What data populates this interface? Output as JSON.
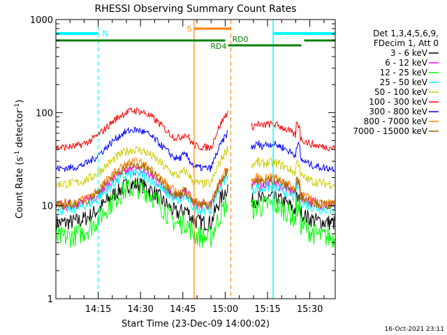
{
  "chart_data": {
    "type": "line",
    "title": "RHESSI Observing Summary Count Rates",
    "xlabel": "Start Time (23-Dec-09 14:00:02)",
    "ylabel_main": "Count Rate (s",
    "ylabel_sup1": "-1",
    "ylabel_mid": " detector",
    "ylabel_sup2": "-1",
    "ylabel_end": ")",
    "y_scale": "log",
    "xlim_min": [
      0,
      99
    ],
    "ylim": [
      1,
      1000
    ],
    "x_ticks": [
      {
        "min": 15,
        "label": "14:15"
      },
      {
        "min": 30,
        "label": "14:30"
      },
      {
        "min": 45,
        "label": "14:45"
      },
      {
        "min": 60,
        "label": "15:00"
      },
      {
        "min": 75,
        "label": "15:15"
      },
      {
        "min": 90,
        "label": "15:30"
      }
    ],
    "y_ticks": [
      {
        "value": 1,
        "label": "1"
      },
      {
        "value": 10,
        "label": "10"
      },
      {
        "value": 100,
        "label": "100"
      },
      {
        "value": 1000,
        "label": "1000"
      }
    ],
    "legend_header": [
      "Det 1,3,4,5,6,9,",
      "FDecim 1, Att 0"
    ],
    "legend_position": "right",
    "series": [
      {
        "name": "3 - 6 keV",
        "color": "#000000",
        "base": 6.5,
        "peak": 17,
        "noise": 0.09
      },
      {
        "name": "6 - 12 keV",
        "color": "#ff00ff",
        "base": 10,
        "peak": 24,
        "noise": 0.06
      },
      {
        "name": "12 - 25 keV",
        "color": "#00ff00",
        "base": 4.5,
        "peak": 15.5,
        "noise": 0.12
      },
      {
        "name": "25 - 50 keV",
        "color": "#00ffff",
        "base": 9,
        "peak": 22,
        "noise": 0.06
      },
      {
        "name": "50 - 100 keV",
        "color": "#cccc00",
        "base": 17,
        "peak": 40,
        "noise": 0.05
      },
      {
        "name": "100 - 300 keV",
        "color": "#ff0000",
        "base": 42,
        "peak": 105,
        "noise": 0.04
      },
      {
        "name": "300 - 800 keV",
        "color": "#0000ff",
        "base": 25,
        "peak": 65,
        "noise": 0.04
      },
      {
        "name": "800 - 7000 keV",
        "color": "#ff8000",
        "base": 10.5,
        "peak": 29,
        "noise": 0.05
      },
      {
        "name": "7000 - 15000 keV",
        "color": "#996600",
        "base": 10,
        "peak": 27,
        "noise": 0.05
      }
    ],
    "data_gap_min": [
      61,
      69
    ],
    "annotations": {
      "night_label": "N",
      "saa_label": "S",
      "rd0_label": "RD0",
      "rd4_label": "RD4"
    },
    "colors": {
      "night": "#00ffff",
      "saa": "#ff8000",
      "decim": "#007f00"
    },
    "intervals": {
      "night": [
        [
          0,
          15
        ],
        [
          77,
          99
        ]
      ],
      "saa": [
        49,
        62
      ],
      "rd0": [
        [
          0,
          60
        ],
        [
          88,
          99
        ]
      ],
      "rd4": [
        [
          61,
          87
        ]
      ]
    }
  },
  "footer_timestamp": "16-Oct-2021 23:11"
}
